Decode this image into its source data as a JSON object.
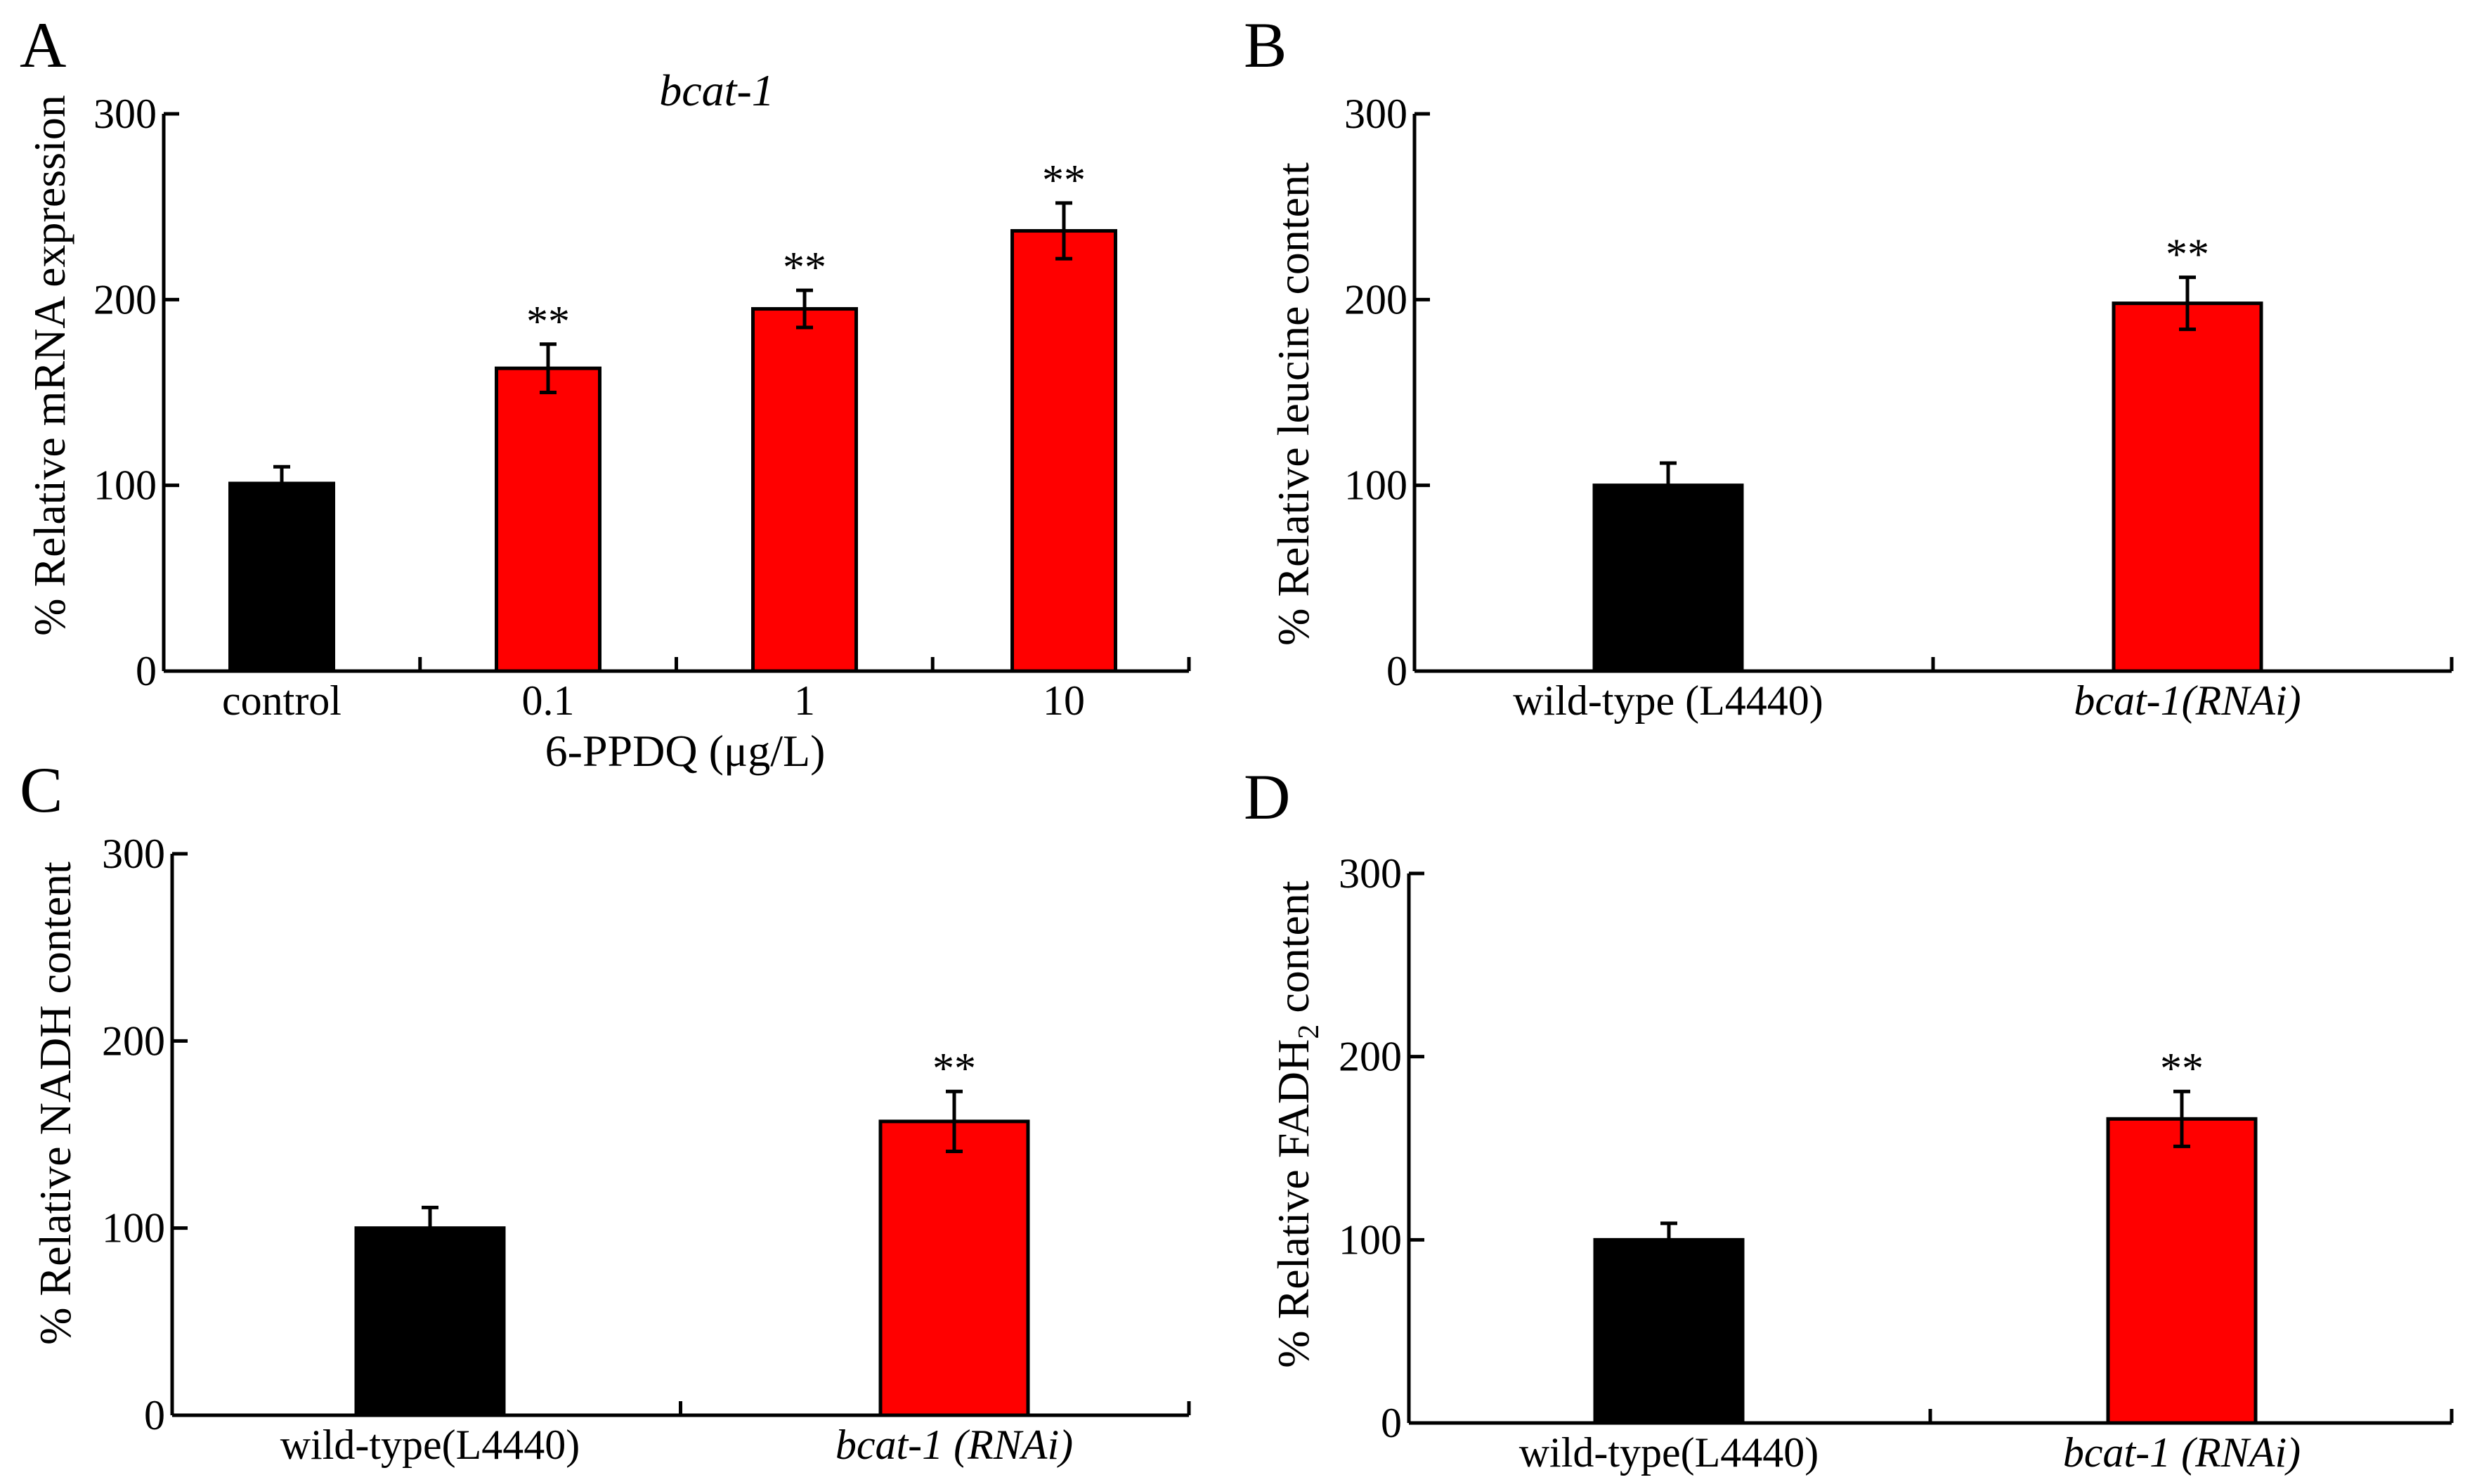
{
  "chart_data": [
    {
      "id": "A",
      "panel_label": "A",
      "type": "bar",
      "title": "bcat-1",
      "ylabel": "% Relative  mRNA  expression",
      "xlabel": "6-PPDQ (μg/L)",
      "ylim": [
        0,
        300
      ],
      "yticks": [
        0,
        100,
        200,
        300
      ],
      "categories": [
        "control",
        "0.1",
        "1",
        "10"
      ],
      "values": [
        101,
        163,
        195,
        237
      ],
      "errors": [
        9,
        13,
        10,
        15
      ],
      "significance": [
        "",
        "**",
        "**",
        "**"
      ],
      "colors": [
        "#000000",
        "#ff0000",
        "#ff0000",
        "#ff0000"
      ]
    },
    {
      "id": "B",
      "panel_label": "B",
      "type": "bar",
      "title": "",
      "ylabel": "% Relative leucine content",
      "xlabel": "",
      "ylim": [
        0,
        300
      ],
      "yticks": [
        0,
        100,
        200,
        300
      ],
      "categories": [
        "wild-type (L4440)",
        "bcat-1(RNAi)"
      ],
      "values": [
        100,
        198
      ],
      "errors": [
        12,
        14
      ],
      "significance": [
        "",
        "**"
      ],
      "colors": [
        "#000000",
        "#ff0000"
      ]
    },
    {
      "id": "C",
      "panel_label": "C",
      "type": "bar",
      "title": "",
      "ylabel": "% Relative NADH content",
      "xlabel": "",
      "ylim": [
        0,
        300
      ],
      "yticks": [
        0,
        100,
        200,
        300
      ],
      "categories": [
        "wild-type(L4440)",
        "bcat-1 (RNAi)"
      ],
      "values": [
        100,
        157
      ],
      "errors": [
        11,
        16
      ],
      "significance": [
        "",
        "**"
      ],
      "colors": [
        "#000000",
        "#ff0000"
      ]
    },
    {
      "id": "D",
      "panel_label": "D",
      "type": "bar",
      "title": "",
      "ylabel": "% Relative FADH",
      "ylabel_subscript": "2",
      "ylabel_suffix": " content",
      "xlabel": "",
      "ylim": [
        0,
        300
      ],
      "yticks": [
        0,
        100,
        200,
        300
      ],
      "categories": [
        "wild-type(L4440)",
        "bcat-1 (RNAi)"
      ],
      "values": [
        100,
        166
      ],
      "errors": [
        9,
        15
      ],
      "significance": [
        "",
        "**"
      ],
      "colors": [
        "#000000",
        "#ff0000"
      ]
    }
  ]
}
